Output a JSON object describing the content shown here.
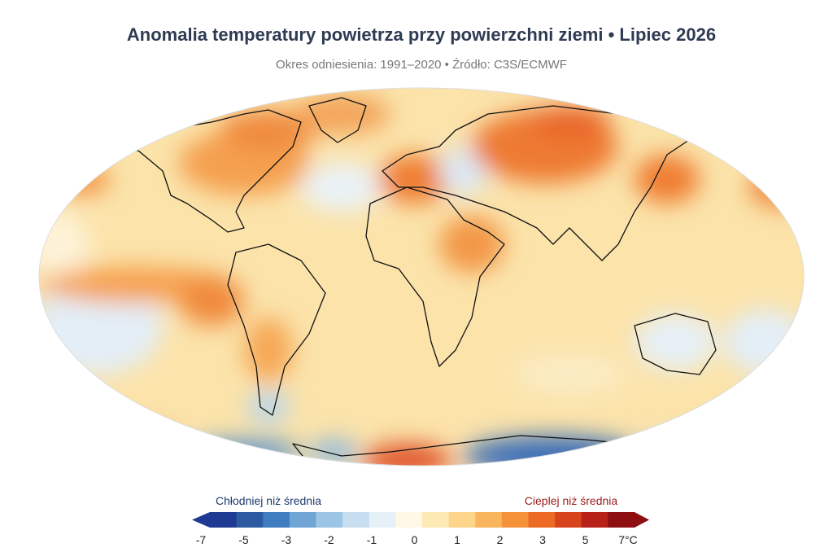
{
  "header": {
    "title": "Anomalia temperatury powietrza przy powierzchni ziemi • Lipiec 2026",
    "subtitle": "Okres odniesienia: 1991–2020 • Źródło: C3S/ECMWF"
  },
  "colorbar": {
    "cold_label": "Chłodniej niż średnia",
    "warm_label": "Cieplej niż średnia",
    "ticks": [
      -7,
      -5,
      -3,
      -2,
      -1,
      0,
      1,
      2,
      3,
      5,
      {
        "value": 7,
        "label": "7°C"
      }
    ],
    "colors": [
      "#1f3a93",
      "#2c5aa0",
      "#3f7cc0",
      "#6fa6d6",
      "#9cc5e5",
      "#c7def0",
      "#e6f0f7",
      "#fff8e6",
      "#fde9b3",
      "#fcd58a",
      "#f9b55c",
      "#f59138",
      "#ec6a24",
      "#d7431b",
      "#b72117",
      "#8d0f12"
    ]
  }
}
